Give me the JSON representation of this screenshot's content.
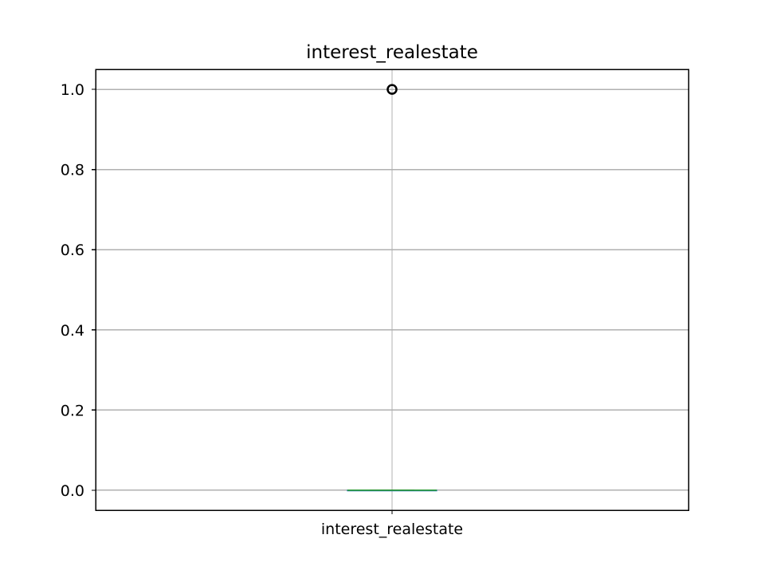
{
  "chart_data": {
    "type": "box",
    "title": "interest_realestate",
    "xlabel": "",
    "ylabel": "",
    "categories": [
      "interest_realestate"
    ],
    "boxes": [
      {
        "category": "interest_realestate",
        "whisker_low": 0.0,
        "q1": 0.0,
        "median": 0.0,
        "q3": 0.0,
        "whisker_high": 0.0,
        "outliers": [
          1.0
        ]
      }
    ],
    "ylim": [
      -0.05,
      1.05
    ],
    "y_ticks": [
      0.0,
      0.2,
      0.4,
      0.6,
      0.8,
      1.0
    ],
    "y_tick_labels": [
      "0.0",
      "0.2",
      "0.4",
      "0.6",
      "0.8",
      "1.0"
    ],
    "grid": true,
    "legend": "none",
    "colors": {
      "median": "#2ca02c",
      "box": "#1f77b4",
      "outlier": "#000000",
      "grid": "#b0b0b0"
    }
  }
}
